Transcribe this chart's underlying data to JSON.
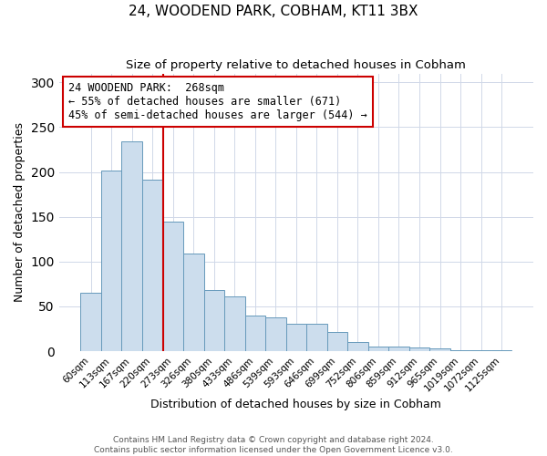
{
  "title": "24, WOODEND PARK, COBHAM, KT11 3BX",
  "subtitle": "Size of property relative to detached houses in Cobham",
  "xlabel": "Distribution of detached houses by size in Cobham",
  "ylabel": "Number of detached properties",
  "bar_labels": [
    "60sqm",
    "113sqm",
    "167sqm",
    "220sqm",
    "273sqm",
    "326sqm",
    "380sqm",
    "433sqm",
    "486sqm",
    "539sqm",
    "593sqm",
    "646sqm",
    "699sqm",
    "752sqm",
    "806sqm",
    "859sqm",
    "912sqm",
    "965sqm",
    "1019sqm",
    "1072sqm",
    "1125sqm"
  ],
  "bar_values": [
    65,
    202,
    234,
    191,
    145,
    109,
    68,
    61,
    40,
    38,
    31,
    31,
    21,
    10,
    5,
    5,
    4,
    3,
    1,
    1,
    1
  ],
  "bar_color": "#ccdded",
  "bar_edge_color": "#6699bb",
  "vline_color": "#cc0000",
  "annotation_line1": "24 WOODEND PARK:  268sqm",
  "annotation_line2": "← 55% of detached houses are smaller (671)",
  "annotation_line3": "45% of semi-detached houses are larger (544) →",
  "annotation_box_color": "white",
  "annotation_box_edge": "#cc0000",
  "ylim": [
    0,
    310
  ],
  "yticks": [
    0,
    50,
    100,
    150,
    200,
    250,
    300
  ],
  "background_color": "white",
  "plot_bg_color": "white",
  "grid_color": "#d0d8e8",
  "footer1": "Contains HM Land Registry data © Crown copyright and database right 2024.",
  "footer2": "Contains public sector information licensed under the Open Government Licence v3.0.",
  "title_fontsize": 11,
  "subtitle_fontsize": 9.5,
  "ylabel_fontsize": 9,
  "xlabel_fontsize": 9
}
